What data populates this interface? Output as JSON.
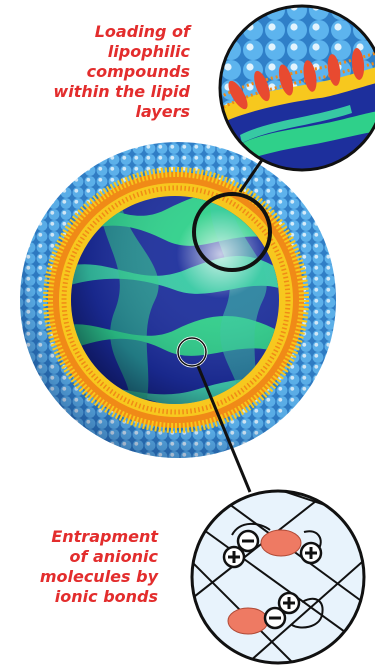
{
  "labels": {
    "top": "Loading of\nlipophilic\ncompounds\nwithin the lipid\nlayers",
    "bottom": "Entrapment\nof anionic\nmolecules by\nionic bonds"
  },
  "colors": {
    "label_red": "#e32d2d",
    "bead_blue": "#4aa6e6",
    "lipid_yellow": "#f7c81e",
    "lipid_orange": "#f08a17",
    "core_blue": "#1d2f9c",
    "core_green": "#2fd08a",
    "molecule_salmon": "#ee7a63",
    "background_light_blue": "#e8f3fc"
  },
  "icons": {
    "plus": "plus-ion-icon",
    "minus": "minus-ion-icon"
  }
}
